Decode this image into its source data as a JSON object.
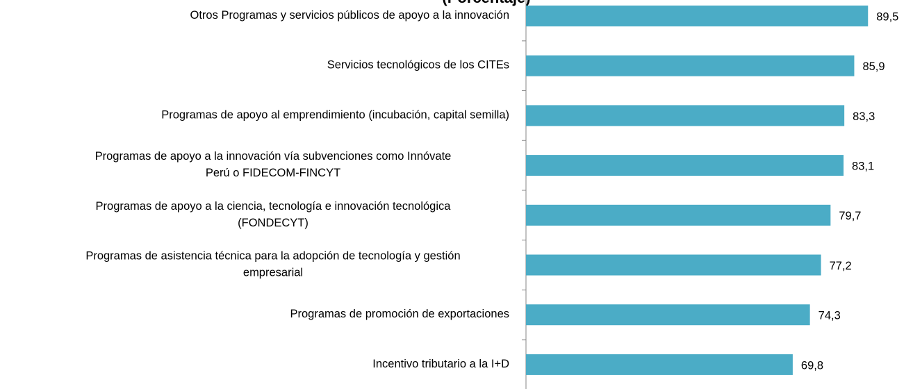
{
  "chart_data": {
    "type": "bar",
    "orientation": "horizontal",
    "title": "(Porcentaje)",
    "categories": [
      "Otros Programas y servicios públicos de apoyo a la innovación",
      "Servicios  tecnológicos de los CITEs",
      "Programas de apoyo al emprendimiento (incubación, capital semilla)",
      "Programas de apoyo a la innovación vía subvenciones como Innóvate\nPerú  o FIDECOM-FINCYT",
      "Programas de apoyo a la ciencia, tecnología e innovación tecnológica\n(FONDECYT)",
      "Programas de asistencia técnica para la adopción de  tecnología y gestión\nempresarial",
      "Programas de promoción de  exportaciones",
      "Incentivo tributario a la I+D"
    ],
    "values": [
      89.5,
      85.9,
      83.3,
      83.1,
      79.7,
      77.2,
      74.3,
      69.8
    ],
    "value_labels": [
      "89,5",
      "85,9",
      "83,3",
      "83,1",
      "79,7",
      "77,2",
      "74,3",
      "69,8"
    ],
    "color": "#4bacc6",
    "xlim": [
      0,
      100
    ]
  }
}
